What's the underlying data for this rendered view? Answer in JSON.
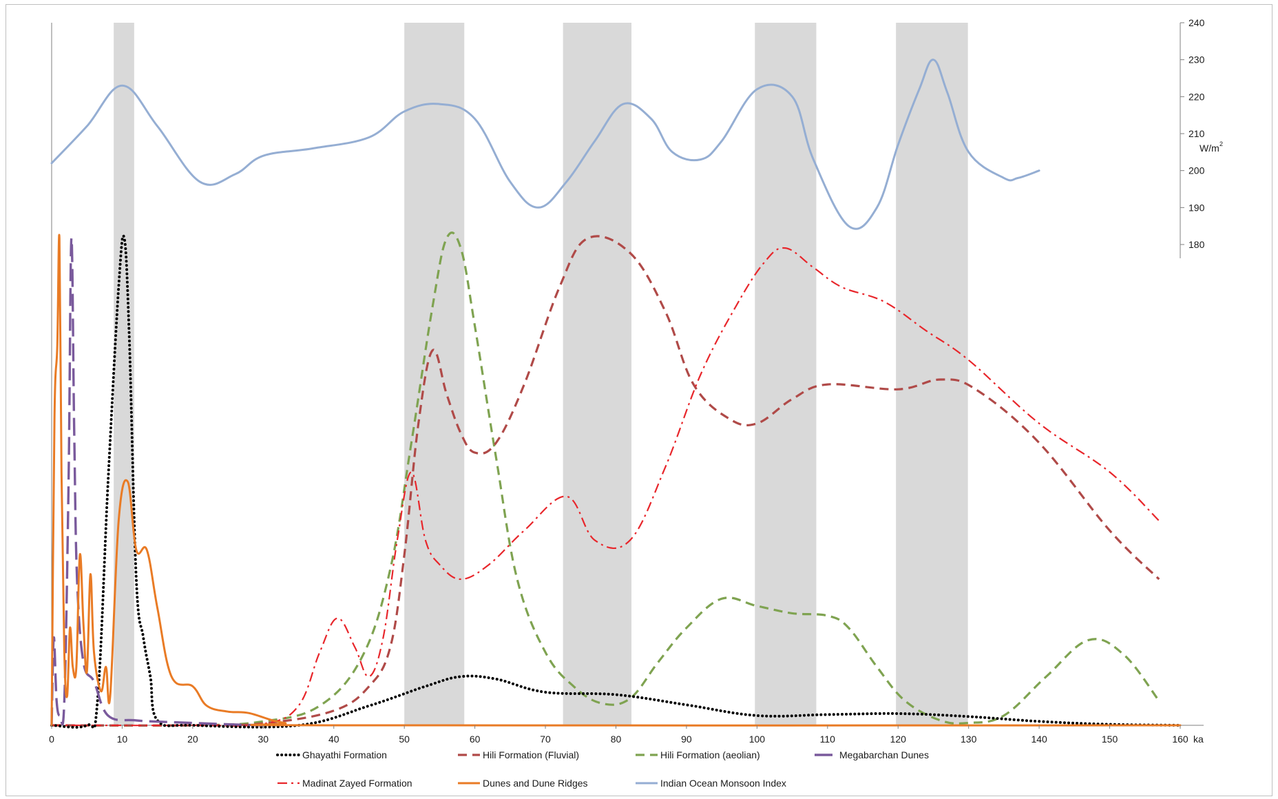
{
  "chart_data": {
    "type": "line",
    "title": "",
    "xlabel": "ka",
    "ylabel_right": "W/m",
    "ylabel_right_sup": "2",
    "xlim": [
      0,
      160
    ],
    "xticks": [
      0,
      10,
      20,
      30,
      40,
      50,
      60,
      70,
      80,
      90,
      100,
      110,
      120,
      130,
      140,
      150,
      160
    ],
    "ylim_right": [
      180,
      240
    ],
    "yticks_right": [
      180,
      190,
      200,
      210,
      220,
      230,
      240
    ],
    "grid": false,
    "legend_position": "bottom",
    "shaded_intervals": [
      [
        8.8,
        11.7
      ],
      [
        50,
        58.5
      ],
      [
        72.5,
        82.2
      ],
      [
        99.7,
        108.4
      ],
      [
        119.7,
        129.9
      ]
    ],
    "series": [
      {
        "name": "Indian Ocean Monsoon Index",
        "axis": "right",
        "color": "#95aed3",
        "dash": "solid",
        "points": [
          [
            0,
            202
          ],
          [
            5,
            212
          ],
          [
            10,
            223
          ],
          [
            15,
            212
          ],
          [
            21,
            197
          ],
          [
            26,
            199
          ],
          [
            30,
            204
          ],
          [
            37,
            206
          ],
          [
            45,
            209
          ],
          [
            50,
            216
          ],
          [
            55,
            218
          ],
          [
            60,
            214
          ],
          [
            65,
            197
          ],
          [
            69,
            190
          ],
          [
            73,
            197
          ],
          [
            77,
            208
          ],
          [
            81,
            218
          ],
          [
            85,
            214
          ],
          [
            88,
            205
          ],
          [
            92,
            203
          ],
          [
            95,
            208
          ],
          [
            100,
            222
          ],
          [
            105,
            220
          ],
          [
            108,
            203
          ],
          [
            113,
            185
          ],
          [
            117,
            190
          ],
          [
            120,
            207
          ],
          [
            123,
            222
          ],
          [
            125,
            230
          ],
          [
            127,
            221
          ],
          [
            130,
            205
          ],
          [
            135,
            198
          ],
          [
            137,
            198
          ],
          [
            140,
            200
          ]
        ]
      },
      {
        "name": "Ghayathi Formation",
        "axis": "left",
        "color": "#000000",
        "dash": "dotted",
        "points": [
          [
            0,
            0
          ],
          [
            5,
            0
          ],
          [
            6.5,
            0.05
          ],
          [
            8,
            0.5
          ],
          [
            9.5,
            0.9
          ],
          [
            10.3,
            1.0
          ],
          [
            11,
            0.8
          ],
          [
            12,
            0.3
          ],
          [
            13,
            0.18
          ],
          [
            14,
            0.1
          ],
          [
            15,
            0.01
          ],
          [
            20,
            0
          ],
          [
            35,
            0
          ],
          [
            45,
            0.04
          ],
          [
            53,
            0.08
          ],
          [
            58,
            0.1
          ],
          [
            63,
            0.095
          ],
          [
            70,
            0.068
          ],
          [
            80,
            0.063
          ],
          [
            90,
            0.042
          ],
          [
            100,
            0.02
          ],
          [
            110,
            0.022
          ],
          [
            120,
            0.024
          ],
          [
            130,
            0.018
          ],
          [
            140,
            0.008
          ],
          [
            150,
            0.002
          ],
          [
            160,
            0
          ]
        ]
      },
      {
        "name": "Hili Formation (Fluvial)",
        "axis": "left",
        "color": "#b04a48",
        "dash": "dashed",
        "points": [
          [
            0,
            0
          ],
          [
            20,
            0
          ],
          [
            30,
            0.004
          ],
          [
            40,
            0.03
          ],
          [
            45,
            0.08
          ],
          [
            48,
            0.16
          ],
          [
            50,
            0.35
          ],
          [
            52,
            0.62
          ],
          [
            54,
            0.77
          ],
          [
            56,
            0.68
          ],
          [
            58,
            0.6
          ],
          [
            60,
            0.56
          ],
          [
            63,
            0.58
          ],
          [
            67,
            0.7
          ],
          [
            72,
            0.9
          ],
          [
            76,
            1.0
          ],
          [
            82,
            0.97
          ],
          [
            87,
            0.85
          ],
          [
            91,
            0.7
          ],
          [
            96,
            0.63
          ],
          [
            100,
            0.62
          ],
          [
            105,
            0.67
          ],
          [
            110,
            0.7
          ],
          [
            120,
            0.69
          ],
          [
            126,
            0.71
          ],
          [
            131,
            0.69
          ],
          [
            140,
            0.58
          ],
          [
            150,
            0.4
          ],
          [
            157,
            0.3
          ]
        ]
      },
      {
        "name": "Hili Formation (aeolian)",
        "axis": "left",
        "color": "#7fa351",
        "dash": "dashed",
        "points": [
          [
            0,
            0
          ],
          [
            20,
            0
          ],
          [
            30,
            0.008
          ],
          [
            38,
            0.04
          ],
          [
            44,
            0.14
          ],
          [
            48,
            0.32
          ],
          [
            51,
            0.58
          ],
          [
            54,
            0.86
          ],
          [
            56,
            1.0
          ],
          [
            58,
            0.98
          ],
          [
            60,
            0.82
          ],
          [
            63,
            0.55
          ],
          [
            66,
            0.3
          ],
          [
            70,
            0.15
          ],
          [
            74,
            0.08
          ],
          [
            78,
            0.045
          ],
          [
            82,
            0.055
          ],
          [
            86,
            0.13
          ],
          [
            90,
            0.2
          ],
          [
            95,
            0.26
          ],
          [
            100,
            0.245
          ],
          [
            105,
            0.23
          ],
          [
            110,
            0.225
          ],
          [
            113,
            0.2
          ],
          [
            117,
            0.12
          ],
          [
            121,
            0.05
          ],
          [
            126,
            0.01
          ],
          [
            130,
            0.005
          ],
          [
            135,
            0.02
          ],
          [
            141,
            0.1
          ],
          [
            147,
            0.175
          ],
          [
            152,
            0.145
          ],
          [
            157,
            0.05
          ]
        ]
      },
      {
        "name": "Megabarchan Dunes",
        "axis": "left",
        "color": "#7a5a9c",
        "dash": "longdash",
        "points": [
          [
            0,
            0
          ],
          [
            0.3,
            0.18
          ],
          [
            0.7,
            0.05
          ],
          [
            1.2,
            0.02
          ],
          [
            1.8,
            0.05
          ],
          [
            2.4,
            0.5
          ],
          [
            2.8,
            1.0
          ],
          [
            3.2,
            0.6
          ],
          [
            3.6,
            0.3
          ],
          [
            4.5,
            0.13
          ],
          [
            6,
            0.09
          ],
          [
            8,
            0.02
          ],
          [
            12,
            0.01
          ],
          [
            18,
            0.006
          ],
          [
            25,
            0.002
          ],
          [
            30,
            0
          ]
        ]
      },
      {
        "name": "Madinat Zayed Formation",
        "axis": "left",
        "color": "#e8262b",
        "dash": "dashdot",
        "points": [
          [
            0,
            0
          ],
          [
            20,
            0
          ],
          [
            30,
            0.003
          ],
          [
            35,
            0.04
          ],
          [
            38,
            0.15
          ],
          [
            40.5,
            0.22
          ],
          [
            43,
            0.16
          ],
          [
            45,
            0.1
          ],
          [
            47,
            0.18
          ],
          [
            49,
            0.38
          ],
          [
            51,
            0.52
          ],
          [
            53,
            0.38
          ],
          [
            55,
            0.33
          ],
          [
            58,
            0.3
          ],
          [
            62,
            0.33
          ],
          [
            67,
            0.4
          ],
          [
            73,
            0.47
          ],
          [
            77,
            0.38
          ],
          [
            82,
            0.38
          ],
          [
            87,
            0.53
          ],
          [
            92,
            0.72
          ],
          [
            97,
            0.86
          ],
          [
            101,
            0.95
          ],
          [
            104,
            0.98
          ],
          [
            108,
            0.94
          ],
          [
            112,
            0.9
          ],
          [
            118,
            0.87
          ],
          [
            124,
            0.81
          ],
          [
            130,
            0.75
          ],
          [
            140,
            0.62
          ],
          [
            150,
            0.52
          ],
          [
            157,
            0.42
          ]
        ]
      },
      {
        "name": "Dunes and Dune Ridges",
        "axis": "left",
        "color": "#e97b25",
        "dash": "solid",
        "points": [
          [
            0,
            0
          ],
          [
            0.4,
            0.63
          ],
          [
            0.8,
            0.78
          ],
          [
            1.1,
            1.0
          ],
          [
            1.4,
            0.52
          ],
          [
            1.8,
            0.15
          ],
          [
            2.2,
            0.06
          ],
          [
            2.6,
            0.2
          ],
          [
            3,
            0.12
          ],
          [
            3.5,
            0.12
          ],
          [
            4,
            0.35
          ],
          [
            4.5,
            0.21
          ],
          [
            5,
            0.11
          ],
          [
            5.5,
            0.31
          ],
          [
            6,
            0.15
          ],
          [
            7,
            0.07
          ],
          [
            7.7,
            0.12
          ],
          [
            8.3,
            0.06
          ],
          [
            9.5,
            0.42
          ],
          [
            10.8,
            0.5
          ],
          [
            12,
            0.36
          ],
          [
            13.5,
            0.36
          ],
          [
            15,
            0.24
          ],
          [
            17,
            0.1
          ],
          [
            20,
            0.08
          ],
          [
            22,
            0.04
          ],
          [
            25,
            0.028
          ],
          [
            28,
            0.025
          ],
          [
            33,
            0.005
          ],
          [
            40,
            0
          ],
          [
            160,
            0
          ]
        ]
      }
    ]
  },
  "legend": {
    "entries": [
      {
        "label": "Ghayathi Formation"
      },
      {
        "label": "Hili Formation (Fluvial)"
      },
      {
        "label": "Hili Formation (aeolian)"
      },
      {
        "label": "Megabarchan Dunes"
      },
      {
        "label": "Madinat Zayed Formation"
      },
      {
        "label": "Dunes and Dune Ridges"
      },
      {
        "label": "Indian Ocean Monsoon Index"
      }
    ]
  }
}
